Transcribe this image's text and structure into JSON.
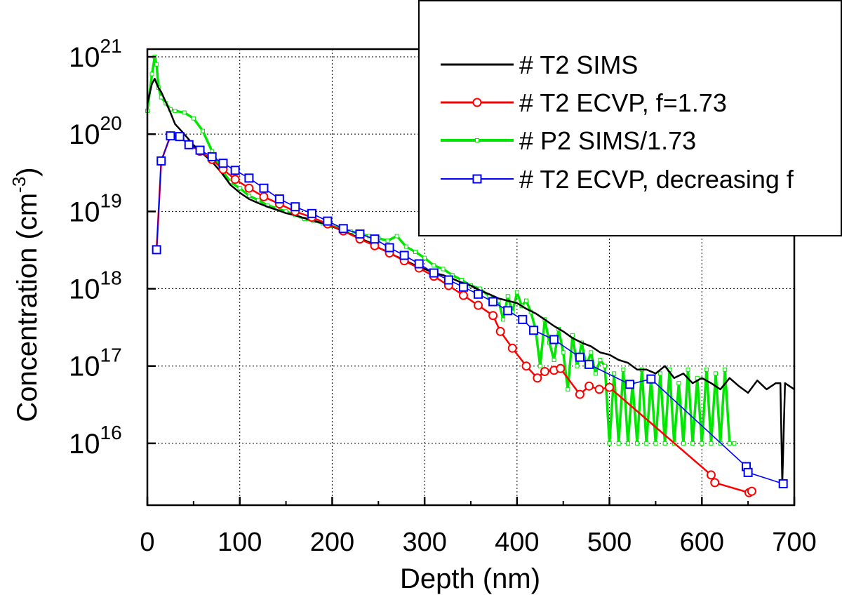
{
  "chart_data": {
    "type": "line",
    "title": "",
    "xlabel": "Depth (nm)",
    "ylabel_main": "Concentration (cm",
    "ylabel_sup": "-3",
    "ylabel_close": ")",
    "xlim": [
      0,
      700
    ],
    "xticks": [
      0,
      100,
      200,
      300,
      400,
      500,
      600,
      700
    ],
    "y_scale": "log",
    "ylim_log10": [
      15.2,
      21.1
    ],
    "yticks": [
      {
        "base": "10",
        "exp": "16",
        "log10": 16
      },
      {
        "base": "10",
        "exp": "17",
        "log10": 17
      },
      {
        "base": "10",
        "exp": "18",
        "log10": 18
      },
      {
        "base": "10",
        "exp": "19",
        "log10": 19
      },
      {
        "base": "10",
        "exp": "20",
        "log10": 20
      },
      {
        "base": "10",
        "exp": "21",
        "log10": 21
      }
    ],
    "grid": true,
    "legend_position": "top-right",
    "series": [
      {
        "name": "# T2 SIMS",
        "color": "#000000",
        "marker": "none",
        "style": "solid",
        "x": [
          0,
          5,
          8,
          10,
          12,
          15,
          20,
          25,
          30,
          40,
          50,
          60,
          70,
          80,
          90,
          100,
          110,
          120,
          130,
          140,
          150,
          160,
          170,
          180,
          190,
          200,
          210,
          220,
          230,
          240,
          250,
          260,
          270,
          280,
          290,
          300,
          310,
          320,
          330,
          340,
          350,
          360,
          370,
          380,
          390,
          400,
          410,
          420,
          430,
          440,
          450,
          460,
          470,
          480,
          490,
          500,
          510,
          520,
          530,
          540,
          550,
          560,
          570,
          580,
          590,
          600,
          610,
          620,
          630,
          640,
          650,
          660,
          670,
          680,
          685,
          687,
          690,
          700
        ],
        "y": [
          2.5e+20,
          4.5e+20,
          5.2e+20,
          4.5e+20,
          4e+20,
          3.5e+20,
          2.6e+20,
          1.9e+20,
          1.35e+20,
          1e+20,
          7.2e+19,
          5.6e+19,
          4.4e+19,
          3.2e+19,
          2.2e+19,
          1.75e+19,
          1.45e+19,
          1.28e+19,
          1.15e+19,
          1.05e+19,
          9.5e+18,
          8.9e+18,
          8.2e+18,
          7.6e+18,
          7e+18,
          6.4e+18,
          5.7e+18,
          5.1e+18,
          4.5e+18,
          4e+18,
          3.4e+18,
          3e+18,
          2.6e+18,
          2.3e+18,
          2e+18,
          1.8e+18,
          1.6e+18,
          1.5e+18,
          1.35e+18,
          1.2e+18,
          1.1e+18,
          9.5e+17,
          8.5e+17,
          7.5e+17,
          7e+17,
          6.5e+17,
          5.5e+17,
          4.8e+17,
          4e+17,
          3.3e+17,
          2.8e+17,
          2.3e+17,
          2e+17,
          1.8e+17,
          1.5e+17,
          1.4e+17,
          1.2e+17,
          1.1e+17,
          9e+16,
          9e+16,
          8e+16,
          1e+17,
          7e+16,
          8e+16,
          6e+16,
          7e+16,
          6e+16,
          5e+16,
          7e+16,
          5.5e+16,
          4.5e+16,
          6.5e+16,
          5e+16,
          6e+16,
          6e+16,
          3000000000000000.0,
          6e+16,
          5e+16
        ]
      },
      {
        "name": "# T2 ECVP, f=1.73",
        "color": "#ff0000",
        "marker": "circle",
        "style": "solid",
        "x": [
          10,
          15,
          25,
          35,
          45,
          57,
          70,
          82,
          95,
          110,
          126,
          143,
          160,
          178,
          195,
          212,
          230,
          246,
          262,
          278,
          294,
          310,
          326,
          342,
          358,
          374,
          382,
          395,
          410,
          422,
          430,
          440,
          447,
          468,
          478,
          489,
          500,
          610,
          614,
          651,
          654
        ],
        "y": [
          3.2e+18,
          4.5e+19,
          9.5e+19,
          9.3e+19,
          7.3e+19,
          6e+19,
          4.7e+19,
          3.5e+19,
          2.6e+19,
          2e+19,
          1.55e+19,
          1.25e+19,
          1e+19,
          8.4e+18,
          6.9e+18,
          5.6e+18,
          4.4e+18,
          3.6e+18,
          2.9e+18,
          2.3e+18,
          1.85e+18,
          1.45e+18,
          1.1e+18,
          8.2e+17,
          6.1e+17,
          4.5e+17,
          2.8e+17,
          1.7e+17,
          1e+17,
          7e+16,
          8.5e+16,
          8.8e+16,
          9.3e+16,
          4.3e+16,
          5.5e+16,
          5e+16,
          5.3e+16,
          3900000000000000.0,
          3100000000000000.0,
          2300000000000000.0,
          2400000000000000.0
        ]
      },
      {
        "name": "# P2 SIMS/1.73",
        "color": "#00e600",
        "marker": "square-small",
        "style": "solid",
        "x": [
          0,
          5,
          8,
          10,
          12,
          15,
          20,
          25,
          30,
          40,
          50,
          60,
          70,
          80,
          90,
          100,
          110,
          120,
          130,
          140,
          150,
          160,
          170,
          180,
          190,
          200,
          210,
          220,
          230,
          240,
          250,
          260,
          270,
          280,
          290,
          300,
          310,
          320,
          330,
          340,
          350,
          360,
          370,
          380,
          385,
          390,
          395,
          400,
          405,
          410,
          415,
          420,
          425,
          430,
          435,
          440,
          445,
          450,
          455,
          460,
          465,
          470,
          475,
          480,
          485,
          490,
          495,
          500,
          505,
          510,
          515,
          520,
          525,
          530,
          535,
          540,
          545,
          550,
          555,
          560,
          565,
          570,
          575,
          580,
          585,
          590,
          595,
          600,
          605,
          610,
          615,
          620,
          625,
          630,
          635
        ],
        "y": [
          2e+20,
          6e+20,
          1e+21,
          8e+20,
          4e+20,
          3e+20,
          2.5e+20,
          2.1e+20,
          2e+20,
          1.9e+20,
          1.6e+20,
          1.1e+20,
          6e+19,
          3.5e+19,
          2.4e+19,
          2e+19,
          1.6e+19,
          1.4e+19,
          1.2e+19,
          1.1e+19,
          1e+19,
          9e+18,
          8e+18,
          7.5e+18,
          7e+18,
          6.5e+18,
          6e+18,
          5.5e+18,
          5.2e+18,
          4.8e+18,
          4.5e+18,
          4.2e+18,
          4.8e+18,
          3.5e+18,
          3e+18,
          2.5e+18,
          2e+18,
          1.8e+18,
          1.5e+18,
          1.3e+18,
          1.1e+18,
          1e+18,
          8e+17,
          7e+17,
          4e+17,
          8e+17,
          5e+17,
          9e+17,
          6e+17,
          7e+17,
          5e+17,
          3e+17,
          1e+17,
          4e+17,
          2e+17,
          1.2e+17,
          3e+17,
          1.5e+17,
          5e+16,
          2.5e+17,
          1e+17,
          2e+17,
          1e+17,
          1.5e+17,
          8e+16,
          1.2e+17,
          1e+17,
          1e+16,
          8e+16,
          1e+16,
          9e+16,
          1e+16,
          6e+16,
          1e+16,
          9e+16,
          1e+16,
          7e+16,
          1e+16,
          8e+16,
          1e+16,
          9e+16,
          1e+16,
          6e+16,
          1e+16,
          9e+16,
          1e+16,
          7e+16,
          1e+16,
          9e+16,
          1e+16,
          8e+16,
          1e+16,
          9e+16,
          1e+16,
          1e+16
        ]
      },
      {
        "name": "# T2 ECVP, decreasing f",
        "color": "#0000ff",
        "marker": "square",
        "style": "solid",
        "x": [
          10,
          15,
          25,
          35,
          45,
          57,
          70,
          82,
          95,
          110,
          126,
          143,
          160,
          178,
          195,
          212,
          230,
          246,
          262,
          278,
          294,
          310,
          326,
          342,
          358,
          374,
          390,
          406,
          418,
          440,
          468,
          478,
          522,
          545,
          648,
          650,
          688
        ],
        "y": [
          3.2e+18,
          4.5e+19,
          9.5e+19,
          9.3e+19,
          7.3e+19,
          6.2e+19,
          5.1e+19,
          4.2e+19,
          3.4e+19,
          2.7e+19,
          2e+19,
          1.45e+19,
          1.15e+19,
          9.4e+18,
          7.5e+18,
          6e+18,
          5.1e+18,
          4.4e+18,
          3.4e+18,
          2.7e+18,
          2.1e+18,
          1.6e+18,
          1.3e+18,
          1.05e+18,
          8.5e+17,
          6.8e+17,
          5.2e+17,
          4e+17,
          2.9e+17,
          2.2e+17,
          1.3e+17,
          1.05e+17,
          5.8e+16,
          6.8e+16,
          5000000000000000.0,
          4200000000000000.0,
          3000000000000000.0
        ]
      }
    ]
  }
}
